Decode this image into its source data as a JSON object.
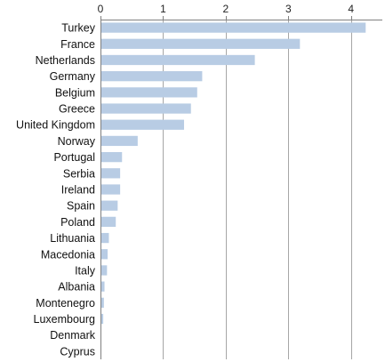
{
  "chart_data": {
    "type": "bar",
    "orientation": "horizontal",
    "x_axis_position": "top",
    "grid": true,
    "xlim": [
      0,
      4.5
    ],
    "xticks": [
      0,
      1,
      2,
      3,
      4
    ],
    "title": "",
    "xlabel": "",
    "ylabel": "",
    "categories": [
      "Turkey",
      "France",
      "Netherlands",
      "Germany",
      "Belgium",
      "Greece",
      "United Kingdom",
      "Norway",
      "Portugal",
      "Serbia",
      "Ireland",
      "Spain",
      "Poland",
      "Lithuania",
      "Macedonia",
      "Italy",
      "Albania",
      "Montenegro",
      "Luxembourg",
      "Denmark",
      "Cyprus"
    ],
    "values": [
      4.22,
      3.17,
      2.45,
      1.61,
      1.53,
      1.43,
      1.32,
      0.58,
      0.33,
      0.3,
      0.3,
      0.26,
      0.23,
      0.12,
      0.1,
      0.09,
      0.05,
      0.04,
      0.03,
      0.0,
      0.0
    ],
    "bar_color": "#b8cce4",
    "grid_color": "#a6a6a6",
    "axis_color": "#808080"
  }
}
